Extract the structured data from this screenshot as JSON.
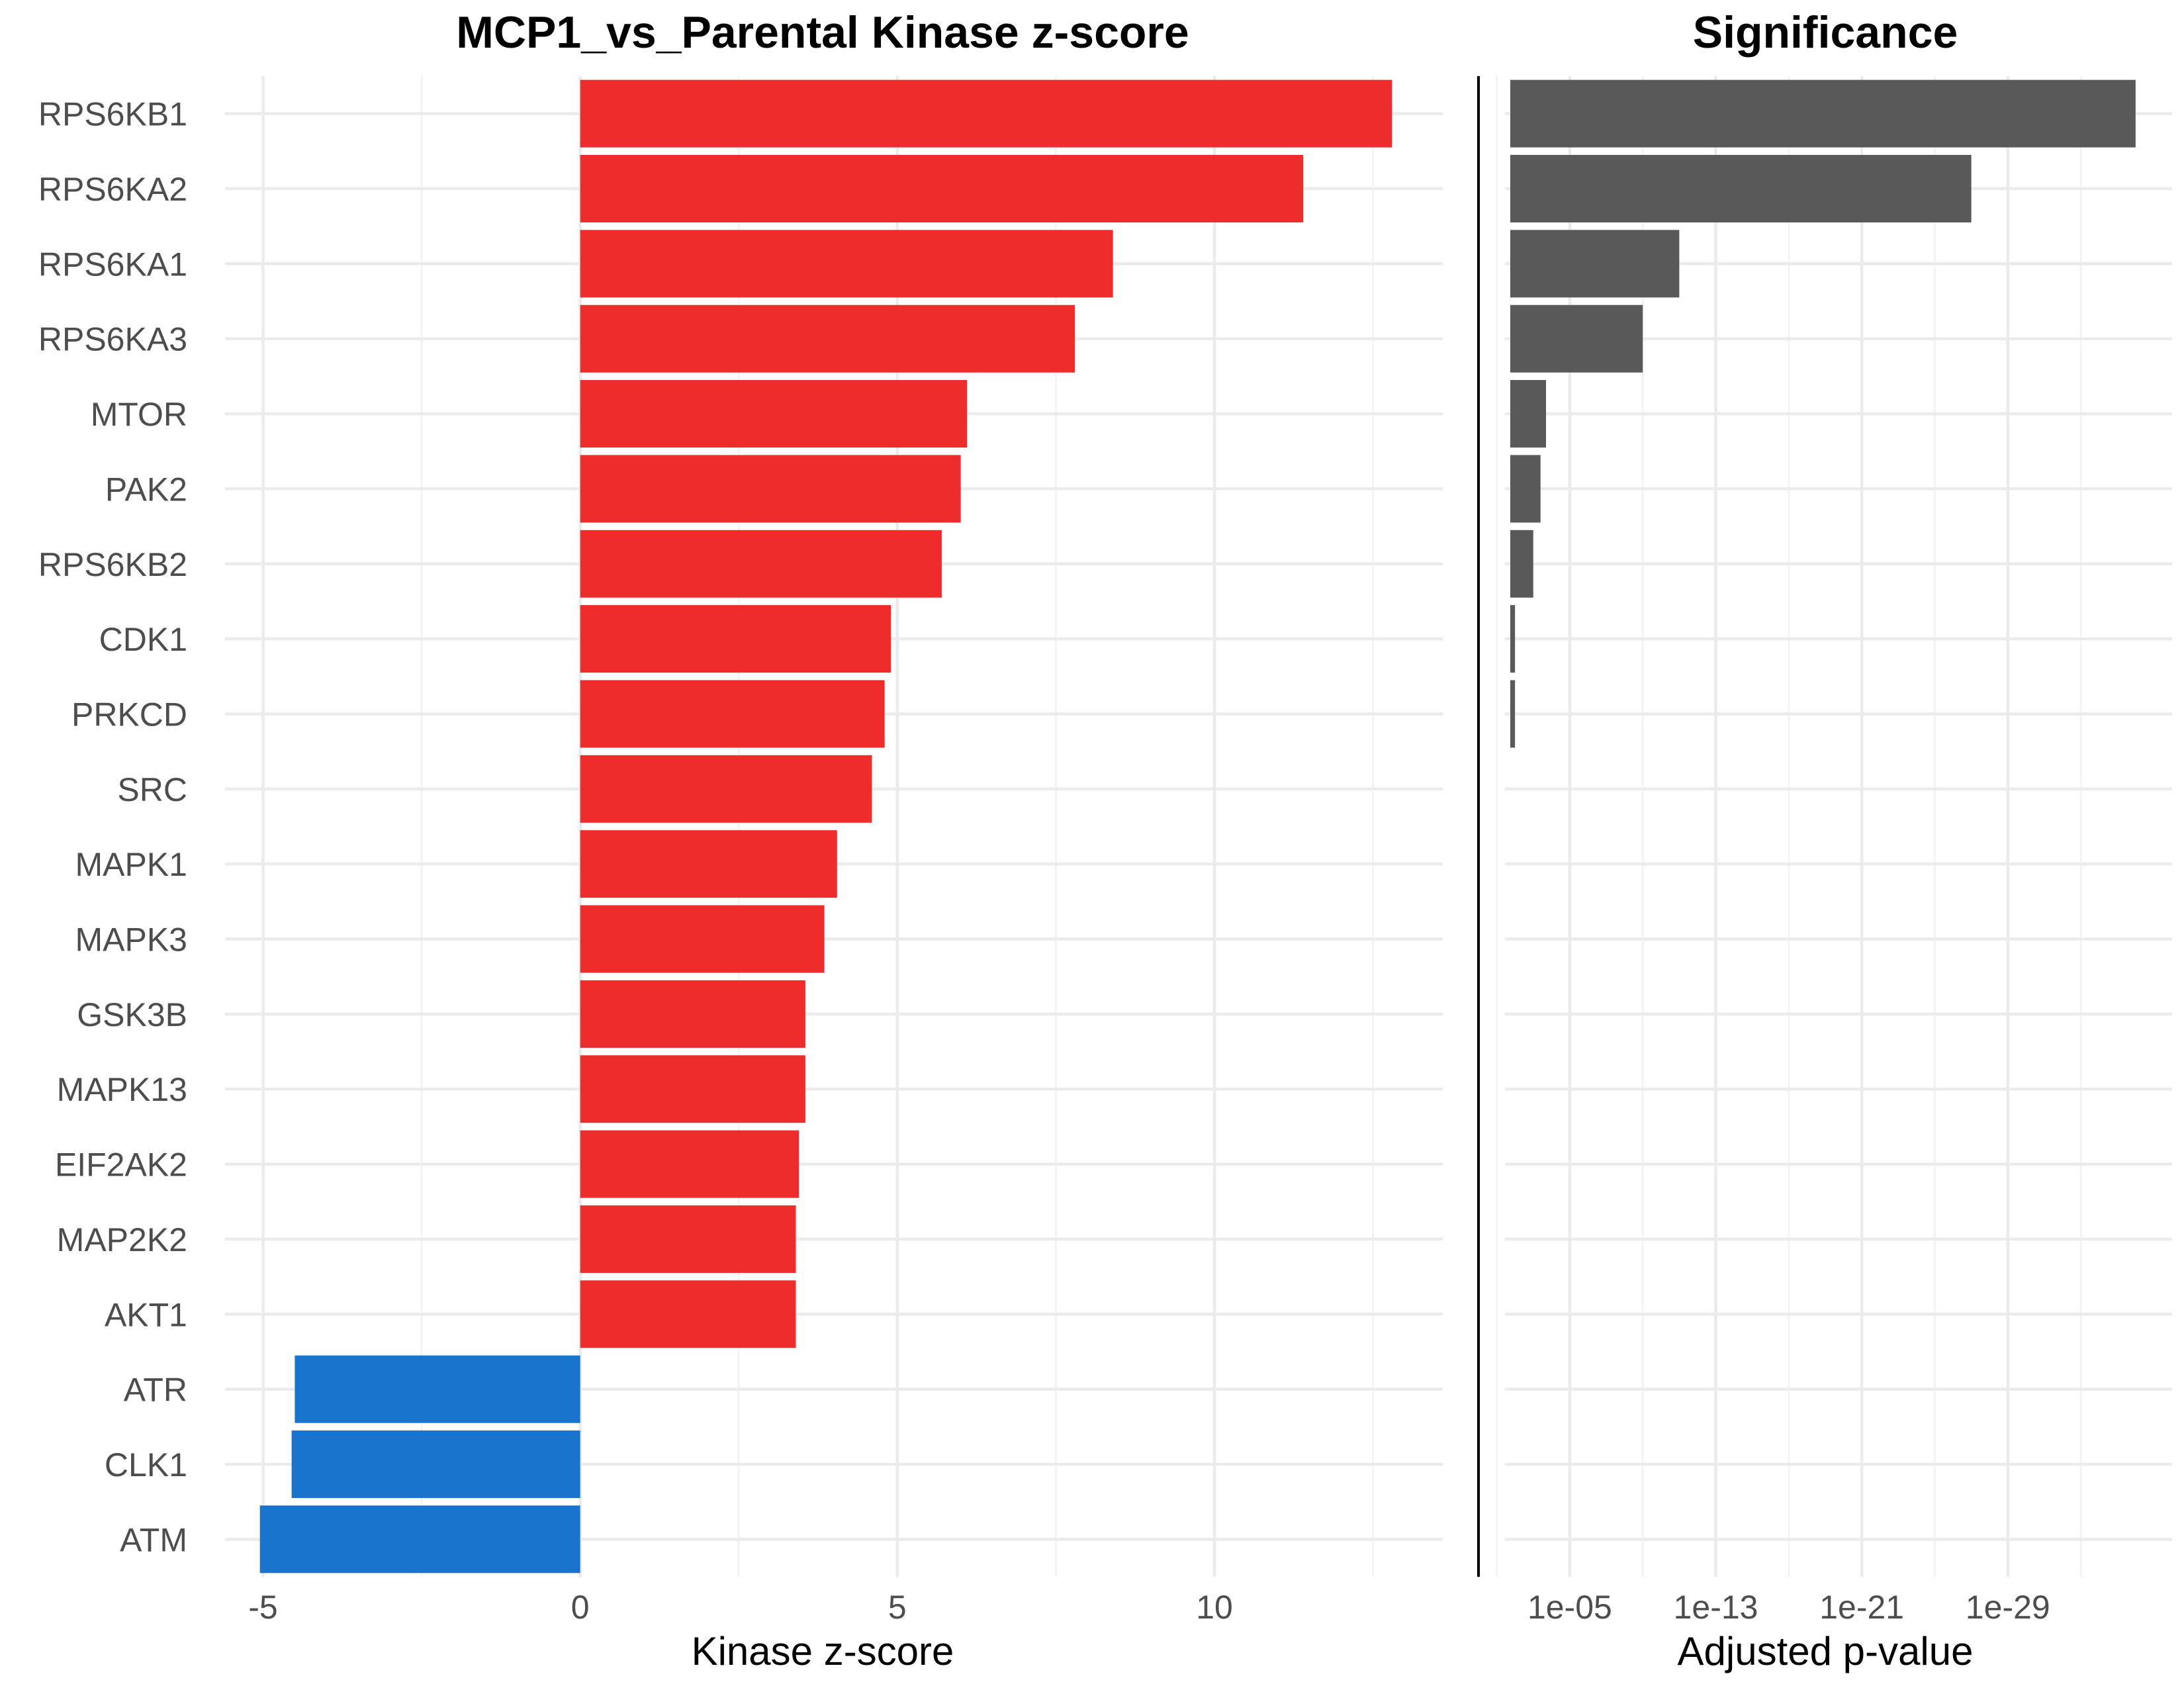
{
  "chart_data": [
    {
      "type": "bar",
      "orientation": "horizontal",
      "title": "MCP1_vs_Parental Kinase z-score",
      "xlabel": "Kinase z-score",
      "ylabel": "",
      "categories": [
        "RPS6KB1",
        "RPS6KA2",
        "RPS6KA1",
        "RPS6KA3",
        "MTOR",
        "PAK2",
        "RPS6KB2",
        "CDK1",
        "PRKCD",
        "SRC",
        "MAPK1",
        "MAPK3",
        "GSK3B",
        "MAPK13",
        "EIF2AK2",
        "MAP2K2",
        "AKT1",
        "ATR",
        "CLK1",
        "ATM"
      ],
      "values": [
        12.8,
        11.4,
        8.4,
        7.8,
        6.1,
        6.0,
        5.7,
        4.9,
        4.8,
        4.6,
        4.05,
        3.85,
        3.55,
        3.55,
        3.45,
        3.4,
        3.4,
        -4.5,
        -4.55,
        -5.05
      ],
      "xlim": [
        -5.6,
        13.6
      ],
      "xticks": [
        -5,
        0,
        5,
        10
      ],
      "xtick_labels": [
        "-5",
        "0",
        "5",
        "10"
      ],
      "colors": {
        "positive": "#ee2c2c",
        "negative": "#1874cd"
      },
      "grid": true,
      "legend": "none"
    },
    {
      "type": "bar",
      "orientation": "horizontal",
      "title": "Significance",
      "xlabel": "Adjusted p-value",
      "ylabel": "",
      "x_scale": "log (reversed, -log10)",
      "categories": [
        "RPS6KB1",
        "RPS6KA2",
        "RPS6KA1",
        "RPS6KA3",
        "MTOR",
        "PAK2",
        "RPS6KB2",
        "CDK1",
        "PRKCD",
        "SRC",
        "MAPK1",
        "MAPK3",
        "GSK3B",
        "MAPK13",
        "EIF2AK2",
        "MAP2K2",
        "AKT1",
        "ATR",
        "CLK1",
        "ATM"
      ],
      "values": [
        1e-36,
        1e-27,
        1e-11,
        1e-09,
        0.0002,
        0.0004,
        0.001,
        0.01,
        0.01,
        0.03,
        0.1,
        0.2,
        0.2,
        0.2,
        0.3,
        0.4,
        0.4,
        0.02,
        0.03,
        0.03
      ],
      "xlim": [
        1,
        1e-38
      ],
      "xticks": [
        1e-05,
        1e-13,
        1e-21,
        1e-29
      ],
      "xtick_labels": [
        "1e-05",
        "1e-13",
        "1e-21",
        "1e-29"
      ],
      "colors": {
        "bar": "#595959"
      },
      "grid": true,
      "legend": "none"
    }
  ]
}
